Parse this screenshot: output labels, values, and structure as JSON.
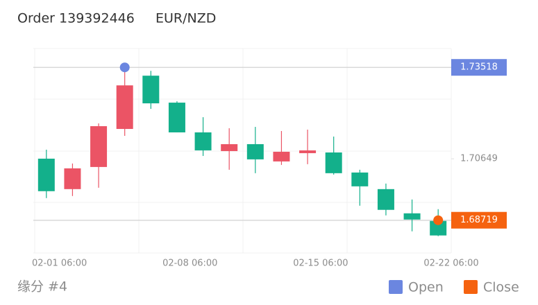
{
  "header": {
    "order": "Order 139392446",
    "symbol": "EUR/NZD"
  },
  "chart_data": {
    "type": "candlestick",
    "categories": [
      "02-01 06:00",
      null,
      null,
      null,
      null,
      "02-08 06:00",
      null,
      null,
      null,
      null,
      "02-15 06:00",
      null,
      null,
      null,
      null,
      "02-22 06:00"
    ],
    "open": [
      1.70652,
      1.69696,
      1.70391,
      1.71585,
      1.73257,
      1.72411,
      1.71477,
      1.7089,
      1.71108,
      1.70565,
      1.70825,
      1.70847,
      1.70217,
      1.69696,
      1.68936,
      1.68697
    ],
    "high": [
      1.70934,
      1.705,
      1.71759,
      1.73518,
      1.73409,
      1.72454,
      1.71954,
      1.71607,
      1.7165,
      1.7152,
      1.71564,
      1.71346,
      1.70304,
      1.6987,
      1.6937,
      1.69066
    ],
    "low": [
      1.69414,
      1.69479,
      1.69739,
      1.71368,
      1.72215,
      1.71477,
      1.70738,
      1.70304,
      1.70196,
      1.70456,
      1.70478,
      1.70152,
      1.69175,
      1.68871,
      1.68371,
      1.68219
    ],
    "close": [
      1.69631,
      1.70348,
      1.71672,
      1.72953,
      1.72389,
      1.71477,
      1.70912,
      1.71108,
      1.7063,
      1.70869,
      1.70912,
      1.70196,
      1.69783,
      1.69045,
      1.68741,
      1.68241
    ],
    "up_color": "#eb5465",
    "down_color": "#13b08b",
    "ylim": [
      1.6769,
      1.7411
    ],
    "yticks": [
      1.68719,
      1.70649,
      1.73518
    ],
    "markers": [
      {
        "name": "Open",
        "color": "#6b86e0",
        "value": 1.73518,
        "at": 3
      },
      {
        "name": "Close",
        "color": "#f5620f",
        "value": 1.68719,
        "at": 15
      }
    ]
  },
  "footer": "缘分 #4"
}
